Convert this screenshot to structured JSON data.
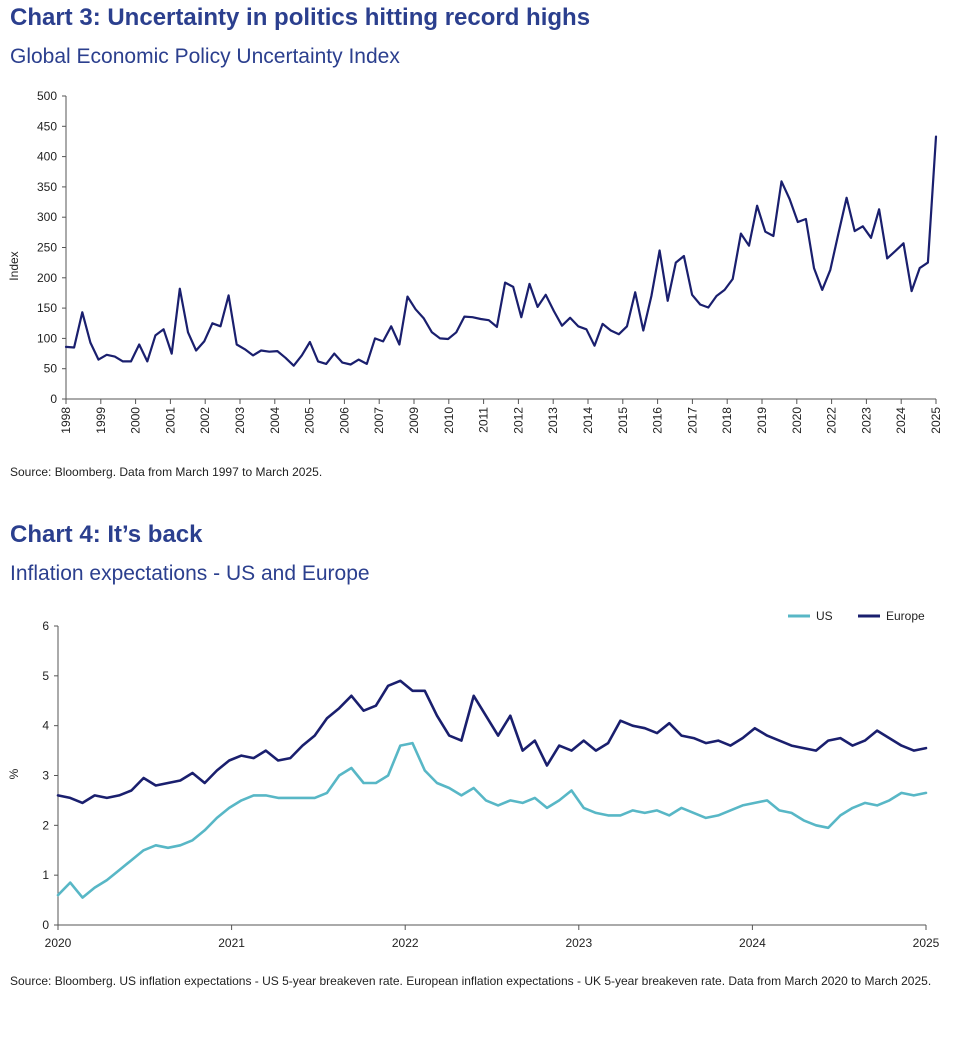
{
  "colors": {
    "heading": "#2b3f8e",
    "navy": "#1a1f6e",
    "teal": "#58b7c6"
  },
  "chart3": {
    "title": "Chart 3: Uncertainty in politics hitting record highs",
    "subtitle": "Global Economic Policy Uncertainty Index",
    "source": "Source: Bloomberg. Data from March 1997 to March 2025."
  },
  "chart4": {
    "title": "Chart 4: It’s back",
    "subtitle": "Inflation expectations - US and Europe",
    "source": "Source: Bloomberg. US inflation expectations - US 5-year breakeven rate. European inflation expectations - UK 5-year breakeven rate. Data from March 2020 to March 2025."
  },
  "chart_data": [
    {
      "type": "line",
      "title": "Global Economic Policy Uncertainty Index",
      "ylabel": "Index",
      "ylim": [
        0,
        500
      ],
      "yticks": [
        "0",
        "50",
        "100",
        "150",
        "200",
        "250",
        "300",
        "350",
        "400",
        "450",
        "500"
      ],
      "xticks": [
        "1998",
        "1999",
        "2000",
        "2001",
        "2002",
        "2003",
        "2004",
        "2005",
        "2006",
        "2007",
        "2009",
        "2010",
        "2011",
        "2012",
        "2013",
        "2014",
        "2015",
        "2016",
        "2017",
        "2018",
        "2019",
        "2020",
        "2022",
        "2023",
        "2024",
        "2025"
      ],
      "grid": false,
      "series": [
        {
          "color": "#1a1f6e",
          "values": [
            86,
            85,
            143,
            93,
            65,
            73,
            70,
            62,
            62,
            90,
            62,
            105,
            115,
            75,
            182,
            110,
            80,
            95,
            125,
            120,
            171,
            90,
            82,
            72,
            80,
            78,
            79,
            68,
            55,
            72,
            94,
            62,
            58,
            75,
            60,
            57,
            65,
            58,
            100,
            95,
            120,
            90,
            169,
            148,
            133,
            110,
            100,
            99,
            110,
            136,
            135,
            132,
            130,
            119,
            192,
            185,
            135,
            190,
            152,
            172,
            145,
            121,
            134,
            120,
            115,
            88,
            124,
            113,
            107,
            120,
            176,
            113,
            170,
            245,
            162,
            225,
            236,
            172,
            156,
            151,
            170,
            180,
            198,
            273,
            253,
            319,
            276,
            269,
            359,
            330,
            292,
            297,
            216,
            180,
            213,
            273,
            332,
            277,
            285,
            266,
            313,
            232,
            244,
            257,
            178,
            216,
            225,
            433
          ]
        }
      ]
    },
    {
      "type": "line",
      "title": "Inflation expectations - US and Europe",
      "ylabel": "%",
      "ylim": [
        0,
        6
      ],
      "yticks": [
        "0",
        "1",
        "2",
        "3",
        "4",
        "5",
        "6"
      ],
      "xticks": [
        "2020",
        "2021",
        "2022",
        "2023",
        "2024",
        "2025"
      ],
      "legend": "top-right",
      "grid": false,
      "series": [
        {
          "name": "US",
          "color": "#58b7c6",
          "values": [
            0.6,
            0.85,
            0.55,
            0.75,
            0.9,
            1.1,
            1.3,
            1.5,
            1.6,
            1.55,
            1.6,
            1.7,
            1.9,
            2.15,
            2.35,
            2.5,
            2.6,
            2.6,
            2.55,
            2.55,
            2.55,
            2.55,
            2.65,
            3.0,
            3.15,
            2.85,
            2.85,
            3.0,
            3.6,
            3.65,
            3.1,
            2.85,
            2.75,
            2.6,
            2.75,
            2.5,
            2.4,
            2.5,
            2.45,
            2.55,
            2.35,
            2.5,
            2.7,
            2.35,
            2.25,
            2.2,
            2.2,
            2.3,
            2.25,
            2.3,
            2.2,
            2.35,
            2.25,
            2.15,
            2.2,
            2.3,
            2.4,
            2.45,
            2.5,
            2.3,
            2.25,
            2.1,
            2.0,
            1.95,
            2.2,
            2.35,
            2.45,
            2.4,
            2.5,
            2.65,
            2.6,
            2.65
          ]
        },
        {
          "name": "Europe",
          "color": "#1a1f6e",
          "values": [
            2.6,
            2.55,
            2.45,
            2.6,
            2.55,
            2.6,
            2.7,
            2.95,
            2.8,
            2.85,
            2.9,
            3.05,
            2.85,
            3.1,
            3.3,
            3.4,
            3.35,
            3.5,
            3.3,
            3.35,
            3.6,
            3.8,
            4.15,
            4.35,
            4.6,
            4.3,
            4.4,
            4.8,
            4.9,
            4.7,
            4.7,
            4.2,
            3.8,
            3.7,
            4.6,
            4.2,
            3.8,
            4.2,
            3.5,
            3.7,
            3.2,
            3.6,
            3.5,
            3.7,
            3.5,
            3.65,
            4.1,
            4.0,
            3.95,
            3.85,
            4.05,
            3.8,
            3.75,
            3.65,
            3.7,
            3.6,
            3.75,
            3.95,
            3.8,
            3.7,
            3.6,
            3.55,
            3.5,
            3.7,
            3.75,
            3.6,
            3.7,
            3.9,
            3.75,
            3.6,
            3.5,
            3.55
          ]
        }
      ]
    }
  ]
}
